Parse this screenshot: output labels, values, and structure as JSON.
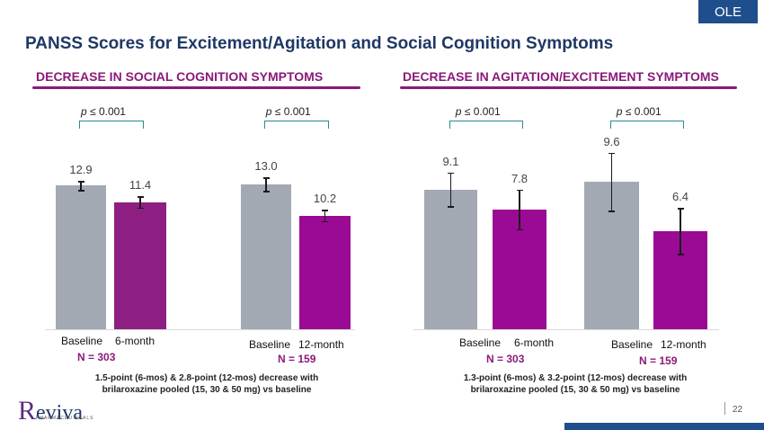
{
  "badge": "OLE",
  "title": "PANSS Scores for Excitement/Agitation and Social Cognition Symptoms",
  "page_number": "22",
  "logo": {
    "name": "Reviva",
    "sub": "PHARMACEUTICALS"
  },
  "colors": {
    "baseline_bar": "#a3a9b3",
    "treatment_6mo_left": "#8e1f82",
    "treatment_bar": "#9b0a94",
    "heading": "#8b1a7a",
    "bracket": "#2b8a94",
    "title": "#1f3864"
  },
  "chart_data": [
    {
      "type": "bar",
      "title": "DECREASE IN SOCIAL COGNITION SYMPTOMS",
      "ylim": [
        0,
        15
      ],
      "groups": [
        {
          "labels": [
            "Baseline",
            "6-month"
          ],
          "n": "N = 303",
          "p": "p ≤ 0.001",
          "values": [
            12.9,
            11.4
          ],
          "value_labels": [
            "12.9",
            "11.4"
          ],
          "errors": [
            0.4,
            0.5
          ]
        },
        {
          "labels": [
            "Baseline",
            "12-month"
          ],
          "n": "N = 159",
          "p": "p ≤ 0.001",
          "values": [
            13.0,
            10.2
          ],
          "value_labels": [
            "13.0",
            "10.2"
          ],
          "errors": [
            0.6,
            0.5
          ]
        }
      ],
      "footnote": [
        "1.5-point (6-mos) & 2.8-point (12-mos) decrease with",
        "brilaroxazine pooled (15, 30 & 50 mg) vs baseline"
      ]
    },
    {
      "type": "bar",
      "title": "DECREASE IN AGITATION/EXCITEMENT SYMPTOMS",
      "ylim": [
        0,
        12
      ],
      "groups": [
        {
          "labels": [
            "Baseline",
            "6-month"
          ],
          "n": "N = 303",
          "p": "p ≤ 0.001",
          "values": [
            9.1,
            7.8
          ],
          "value_labels": [
            "9.1",
            "7.8"
          ],
          "errors": [
            1.1,
            1.3
          ]
        },
        {
          "labels": [
            "Baseline",
            "12-month"
          ],
          "n": "N = 159",
          "p": "p ≤ 0.001",
          "values": [
            9.6,
            6.4
          ],
          "value_labels": [
            "9.6",
            "6.4"
          ],
          "errors": [
            1.9,
            1.5
          ]
        }
      ],
      "footnote": [
        "1.3-point (6-mos) & 3.2-point (12-mos) decrease with",
        "brilaroxazine pooled (15, 30 & 50 mg) vs baseline"
      ]
    }
  ]
}
